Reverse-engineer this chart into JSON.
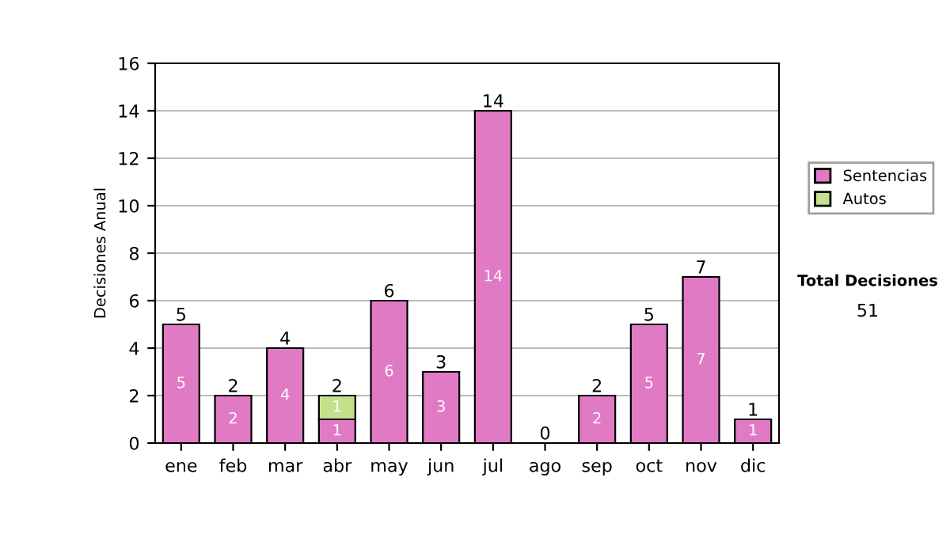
{
  "chart_data": {
    "type": "bar",
    "stacked": true,
    "ylabel": "Decisiones Anual",
    "categories": [
      "ene",
      "feb",
      "mar",
      "abr",
      "may",
      "jun",
      "jul",
      "ago",
      "sep",
      "oct",
      "nov",
      "dic"
    ],
    "series": [
      {
        "name": "Sentencias",
        "color": "#e07ac4",
        "values": [
          5,
          2,
          4,
          1,
          6,
          3,
          14,
          0,
          2,
          5,
          7,
          1
        ],
        "value_labels": [
          "5",
          "2",
          "4",
          "1",
          "6",
          "3",
          "14",
          null,
          "2",
          "5",
          "7",
          "1"
        ]
      },
      {
        "name": "Autos",
        "color": "#c4e08c",
        "values": [
          0,
          0,
          0,
          1,
          0,
          0,
          0,
          0,
          0,
          0,
          0,
          0
        ],
        "value_labels": [
          null,
          null,
          null,
          "1",
          null,
          null,
          null,
          null,
          null,
          null,
          null,
          null
        ]
      }
    ],
    "totals": [
      "5",
      "2",
      "4",
      "2",
      "6",
      "3",
      "14",
      "0",
      "2",
      "5",
      "7",
      "1"
    ],
    "ylim": [
      0,
      16
    ],
    "yticks": [
      0,
      2,
      4,
      6,
      8,
      10,
      12,
      14,
      16
    ],
    "grid": "y",
    "legend": "right",
    "annotations": [
      "Total Decisiones",
      "51"
    ]
  }
}
